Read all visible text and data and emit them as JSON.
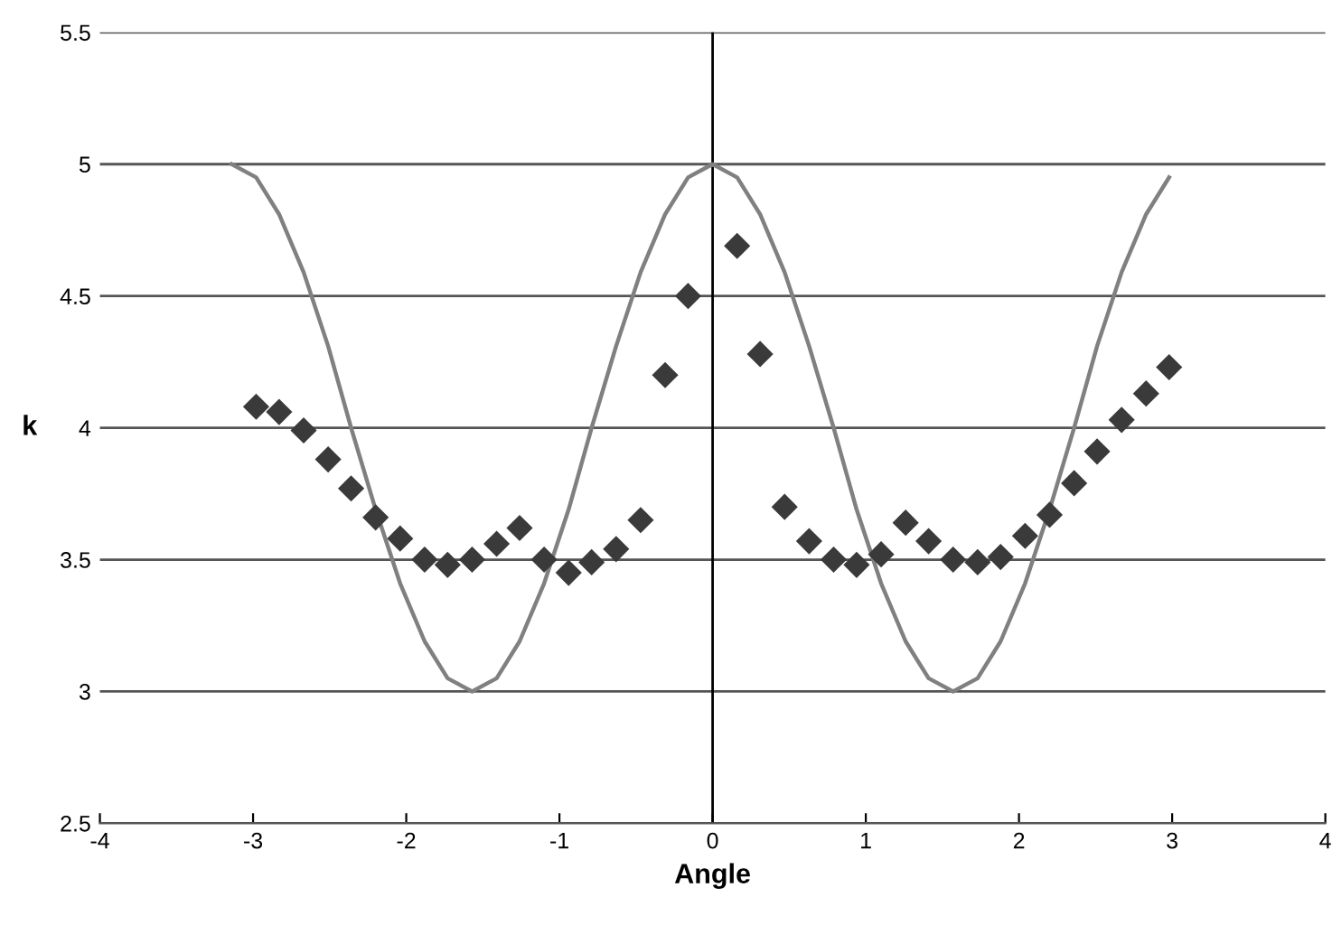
{
  "chart_data": {
    "type": "scatter",
    "xlabel": "Angle",
    "ylabel": "k",
    "xlim": [
      -4,
      4
    ],
    "xticks": [
      -4,
      -3,
      -2,
      -1,
      0,
      1,
      2,
      3,
      4
    ],
    "ylim": [
      2.5,
      5.5
    ],
    "yticks": [
      2.5,
      3,
      3.5,
      4,
      4.5,
      5,
      5.5
    ],
    "grid": "y",
    "legend": false,
    "ref_lines": [
      {
        "axis": "x",
        "value": 0,
        "color": "#000000"
      }
    ],
    "series": [
      {
        "type": "line",
        "color": "#808080",
        "marker": "none",
        "x": [
          -3.14,
          -2.98,
          -2.83,
          -2.67,
          -2.51,
          -2.36,
          -2.2,
          -2.04,
          -1.88,
          -1.73,
          -1.57,
          -1.41,
          -1.26,
          -1.1,
          -0.94,
          -0.79,
          -0.63,
          -0.47,
          -0.31,
          -0.16,
          0,
          0.16,
          0.31,
          0.47,
          0.63,
          0.79,
          0.94,
          1.1,
          1.26,
          1.41,
          1.57,
          1.73,
          1.88,
          2.04,
          2.2,
          2.36,
          2.51,
          2.67,
          2.83,
          2.98
        ],
        "values": [
          5,
          4.95,
          4.81,
          4.59,
          4.31,
          4,
          3.69,
          3.41,
          3.19,
          3.05,
          3,
          3.05,
          3.19,
          3.41,
          3.69,
          4,
          4.31,
          4.59,
          4.81,
          4.95,
          5,
          4.95,
          4.81,
          4.59,
          4.31,
          4,
          3.69,
          3.41,
          3.19,
          3.05,
          3,
          3.05,
          3.19,
          3.41,
          3.69,
          4,
          4.31,
          4.59,
          4.81,
          4.95
        ]
      },
      {
        "color": "#3a3a3a",
        "marker": "diamond",
        "x": [
          -2.98,
          -2.83,
          -2.67,
          -2.51,
          -2.36,
          -2.2,
          -2.04,
          -1.88,
          -1.73,
          -1.57,
          -1.41,
          -1.26,
          -1.1,
          -0.94,
          -0.79,
          -0.63,
          -0.47,
          -0.31,
          -0.16,
          0.16,
          0.31,
          0.47,
          0.63,
          0.79,
          0.94,
          1.1,
          1.26,
          1.41,
          1.57,
          1.73,
          1.88,
          2.04,
          2.2,
          2.36,
          2.51,
          2.67,
          2.83,
          2.98
        ],
        "values": [
          4.08,
          4.06,
          3.99,
          3.88,
          3.77,
          3.66,
          3.58,
          3.5,
          3.48,
          3.5,
          3.56,
          3.62,
          3.5,
          3.45,
          3.49,
          3.54,
          3.65,
          4.2,
          4.5,
          4.69,
          4.28,
          3.7,
          3.57,
          3.5,
          3.48,
          3.52,
          3.64,
          3.57,
          3.5,
          3.49,
          3.51,
          3.59,
          3.67,
          3.79,
          3.91,
          4.03,
          4.13,
          4.23
        ]
      }
    ]
  }
}
